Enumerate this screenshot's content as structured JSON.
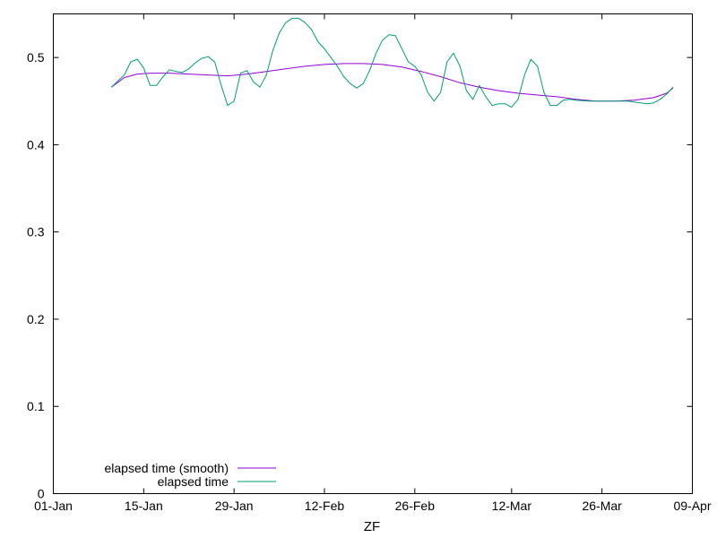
{
  "chart_data": {
    "type": "line",
    "title": "",
    "xlabel": "ZF",
    "ylabel": "",
    "x_axis": {
      "type": "date",
      "range": [
        "2024-01-01",
        "2024-04-09"
      ],
      "ticks": [
        {
          "date": "2024-01-01",
          "label": "01-Jan"
        },
        {
          "date": "2024-01-15",
          "label": "15-Jan"
        },
        {
          "date": "2024-01-29",
          "label": "29-Jan"
        },
        {
          "date": "2024-02-12",
          "label": "12-Feb"
        },
        {
          "date": "2024-02-26",
          "label": "26-Feb"
        },
        {
          "date": "2024-03-12",
          "label": "12-Mar"
        },
        {
          "date": "2024-03-26",
          "label": "26-Mar"
        },
        {
          "date": "2024-04-09",
          "label": "09-Apr"
        }
      ]
    },
    "y_axis": {
      "range": [
        0,
        0.55
      ],
      "ticks": [
        {
          "value": 0,
          "label": "0"
        },
        {
          "value": 0.1,
          "label": "0.1"
        },
        {
          "value": 0.2,
          "label": "0.2"
        },
        {
          "value": 0.3,
          "label": "0.3"
        },
        {
          "value": 0.4,
          "label": "0.4"
        },
        {
          "value": 0.5,
          "label": "0.5"
        }
      ]
    },
    "grid": false,
    "legend_position": "bottom-left",
    "series": [
      {
        "name": "elapsed time (smooth)",
        "color": "#9400d3",
        "points": [
          [
            "2024-01-10",
            0.466
          ],
          [
            "2024-01-12",
            0.477
          ],
          [
            "2024-01-14",
            0.481
          ],
          [
            "2024-01-16",
            0.482
          ],
          [
            "2024-01-19",
            0.482
          ],
          [
            "2024-01-22",
            0.481
          ],
          [
            "2024-01-25",
            0.48
          ],
          [
            "2024-01-28",
            0.479
          ],
          [
            "2024-01-31",
            0.481
          ],
          [
            "2024-02-03",
            0.484
          ],
          [
            "2024-02-06",
            0.487
          ],
          [
            "2024-02-09",
            0.49
          ],
          [
            "2024-02-12",
            0.492
          ],
          [
            "2024-02-15",
            0.493
          ],
          [
            "2024-02-18",
            0.493
          ],
          [
            "2024-02-21",
            0.492
          ],
          [
            "2024-02-24",
            0.489
          ],
          [
            "2024-02-27",
            0.484
          ],
          [
            "2024-03-01",
            0.478
          ],
          [
            "2024-03-04",
            0.471
          ],
          [
            "2024-03-07",
            0.466
          ],
          [
            "2024-03-10",
            0.462
          ],
          [
            "2024-03-13",
            0.459
          ],
          [
            "2024-03-16",
            0.457
          ],
          [
            "2024-03-19",
            0.455
          ],
          [
            "2024-03-22",
            0.452
          ],
          [
            "2024-03-25",
            0.45
          ],
          [
            "2024-03-28",
            0.45
          ],
          [
            "2024-03-31",
            0.451
          ],
          [
            "2024-04-03",
            0.454
          ],
          [
            "2024-04-05",
            0.459
          ],
          [
            "2024-04-06",
            0.465
          ]
        ]
      },
      {
        "name": "elapsed time",
        "color": "#009e73",
        "points": [
          [
            "2024-01-10",
            0.466
          ],
          [
            "2024-01-12",
            0.48
          ],
          [
            "2024-01-13",
            0.495
          ],
          [
            "2024-01-14",
            0.498
          ],
          [
            "2024-01-15",
            0.488
          ],
          [
            "2024-01-16",
            0.468
          ],
          [
            "2024-01-17",
            0.468
          ],
          [
            "2024-01-18",
            0.478
          ],
          [
            "2024-01-19",
            0.486
          ],
          [
            "2024-01-20",
            0.484
          ],
          [
            "2024-01-21",
            0.483
          ],
          [
            "2024-01-22",
            0.487
          ],
          [
            "2024-01-23",
            0.494
          ],
          [
            "2024-01-24",
            0.499
          ],
          [
            "2024-01-25",
            0.501
          ],
          [
            "2024-01-26",
            0.495
          ],
          [
            "2024-01-27",
            0.468
          ],
          [
            "2024-01-28",
            0.445
          ],
          [
            "2024-01-29",
            0.45
          ],
          [
            "2024-01-30",
            0.482
          ],
          [
            "2024-01-31",
            0.485
          ],
          [
            "2024-02-01",
            0.472
          ],
          [
            "2024-02-02",
            0.466
          ],
          [
            "2024-02-03",
            0.48
          ],
          [
            "2024-02-04",
            0.508
          ],
          [
            "2024-02-05",
            0.528
          ],
          [
            "2024-02-06",
            0.54
          ],
          [
            "2024-02-07",
            0.545
          ],
          [
            "2024-02-08",
            0.545
          ],
          [
            "2024-02-09",
            0.54
          ],
          [
            "2024-02-10",
            0.532
          ],
          [
            "2024-02-11",
            0.518
          ],
          [
            "2024-02-12",
            0.51
          ],
          [
            "2024-02-13",
            0.5
          ],
          [
            "2024-02-14",
            0.49
          ],
          [
            "2024-02-15",
            0.478
          ],
          [
            "2024-02-16",
            0.47
          ],
          [
            "2024-02-17",
            0.465
          ],
          [
            "2024-02-18",
            0.47
          ],
          [
            "2024-02-19",
            0.485
          ],
          [
            "2024-02-20",
            0.505
          ],
          [
            "2024-02-21",
            0.52
          ],
          [
            "2024-02-22",
            0.526
          ],
          [
            "2024-02-23",
            0.525
          ],
          [
            "2024-02-24",
            0.51
          ],
          [
            "2024-02-25",
            0.495
          ],
          [
            "2024-02-26",
            0.49
          ],
          [
            "2024-02-27",
            0.48
          ],
          [
            "2024-02-28",
            0.46
          ],
          [
            "2024-02-29",
            0.45
          ],
          [
            "2024-03-01",
            0.46
          ],
          [
            "2024-03-02",
            0.495
          ],
          [
            "2024-03-03",
            0.505
          ],
          [
            "2024-03-04",
            0.49
          ],
          [
            "2024-03-05",
            0.462
          ],
          [
            "2024-03-06",
            0.452
          ],
          [
            "2024-03-07",
            0.468
          ],
          [
            "2024-03-08",
            0.455
          ],
          [
            "2024-03-09",
            0.445
          ],
          [
            "2024-03-10",
            0.447
          ],
          [
            "2024-03-11",
            0.447
          ],
          [
            "2024-03-12",
            0.443
          ],
          [
            "2024-03-13",
            0.452
          ],
          [
            "2024-03-14",
            0.48
          ],
          [
            "2024-03-15",
            0.498
          ],
          [
            "2024-03-16",
            0.49
          ],
          [
            "2024-03-17",
            0.46
          ],
          [
            "2024-03-18",
            0.445
          ],
          [
            "2024-03-19",
            0.445
          ],
          [
            "2024-03-20",
            0.451
          ],
          [
            "2024-03-21",
            0.452
          ],
          [
            "2024-03-22",
            0.451
          ],
          [
            "2024-03-24",
            0.45
          ],
          [
            "2024-03-26",
            0.45
          ],
          [
            "2024-03-28",
            0.45
          ],
          [
            "2024-03-30",
            0.45
          ],
          [
            "2024-04-01",
            0.448
          ],
          [
            "2024-04-02",
            0.447
          ],
          [
            "2024-04-03",
            0.448
          ],
          [
            "2024-04-04",
            0.452
          ],
          [
            "2024-04-05",
            0.458
          ],
          [
            "2024-04-06",
            0.466
          ]
        ]
      }
    ]
  }
}
